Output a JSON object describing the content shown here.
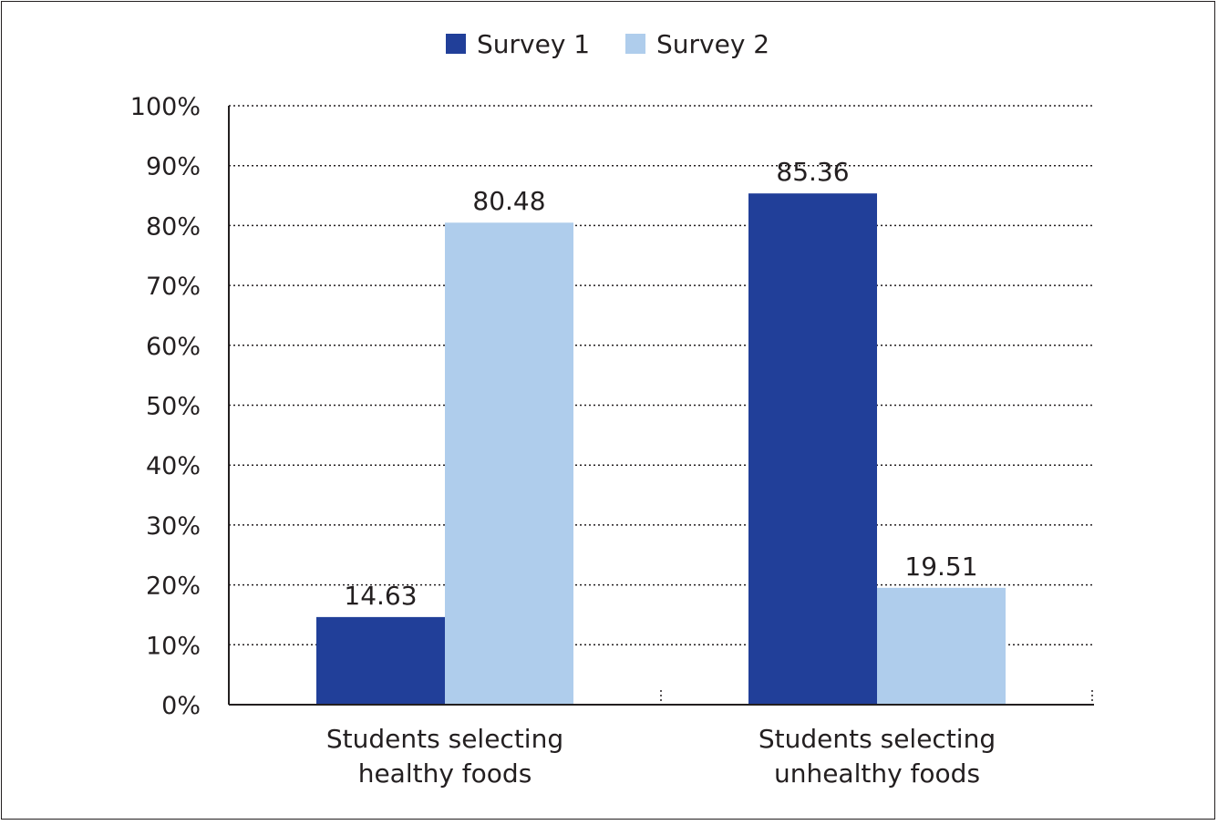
{
  "chart_data": {
    "type": "bar",
    "categories": [
      "Students selecting healthy foods",
      "Students selecting unhealthy foods"
    ],
    "category_lines": [
      [
        "Students selecting",
        "healthy foods"
      ],
      [
        "Students selecting",
        "unhealthy foods"
      ]
    ],
    "series": [
      {
        "name": "Survey 1",
        "values": [
          14.63,
          85.36
        ],
        "labels": [
          "14.63",
          "85.36"
        ],
        "color": "#213f99"
      },
      {
        "name": "Survey 2",
        "values": [
          80.48,
          19.51
        ],
        "labels": [
          "80.48",
          "19.51"
        ],
        "color": "#afcdec"
      }
    ],
    "ylim": [
      0,
      100
    ],
    "yticks": [
      0,
      10,
      20,
      30,
      40,
      50,
      60,
      70,
      80,
      90,
      100
    ],
    "ytick_labels": [
      "0%",
      "10%",
      "20%",
      "30%",
      "40%",
      "50%",
      "60%",
      "70%",
      "80%",
      "90%",
      "100%"
    ],
    "grid": true,
    "legend_position": "top-center",
    "title": "",
    "xlabel": "",
    "ylabel": ""
  }
}
